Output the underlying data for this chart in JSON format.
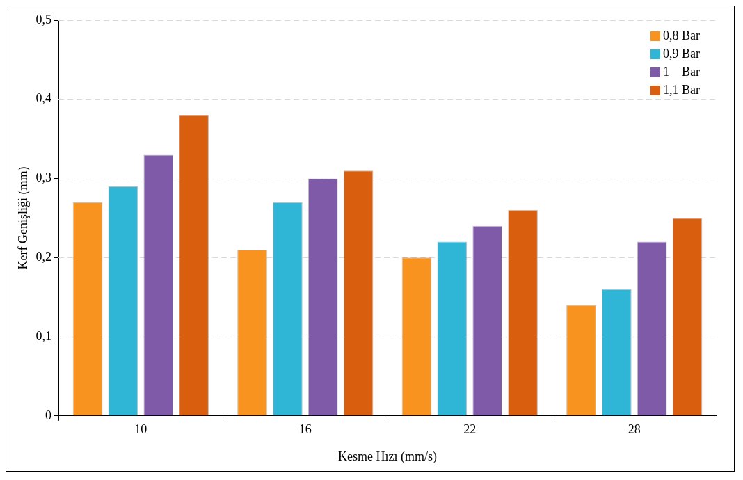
{
  "chart_data": {
    "type": "bar",
    "xlabel": "Kesme Hızı (mm/s)",
    "ylabel": "Kerf Genişliği (mm)",
    "categories": [
      "10",
      "16",
      "22",
      "28"
    ],
    "series": [
      {
        "name": "0,8 Bar",
        "color": "#f7931e",
        "values": [
          0.27,
          0.21,
          0.2,
          0.14
        ]
      },
      {
        "name": "0,9 Bar",
        "color": "#2fb5d6",
        "values": [
          0.29,
          0.27,
          0.22,
          0.16
        ]
      },
      {
        "name": "1    Bar",
        "color": "#7f5aa8",
        "values": [
          0.33,
          0.3,
          0.24,
          0.22
        ]
      },
      {
        "name": "1,1 Bar",
        "color": "#d95f0e",
        "values": [
          0.38,
          0.31,
          0.26,
          0.25
        ]
      }
    ],
    "ylim": [
      0,
      0.5
    ],
    "yticks": [
      0,
      {
        "value": 0.1,
        "label": "0,1"
      },
      {
        "value": 0.2,
        "label": "0,2"
      },
      {
        "value": 0.3,
        "label": "0,3"
      },
      {
        "value": 0.4,
        "label": "0,4"
      },
      {
        "value": 0.5,
        "label": "0,5"
      }
    ],
    "grid": "y",
    "legend": "top right"
  }
}
